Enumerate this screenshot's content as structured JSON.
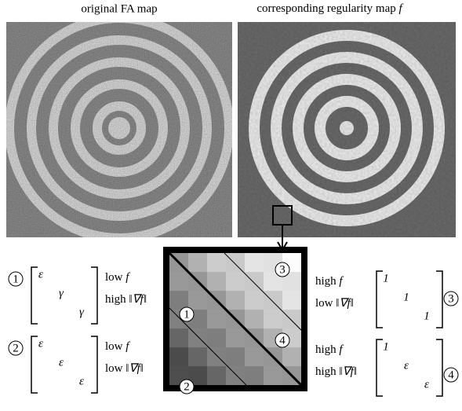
{
  "panels": {
    "left_title": "original FA map",
    "right_title": "corresponding regularity map",
    "right_symbol": "f"
  },
  "cases": [
    {
      "marker": "1",
      "matrix": [
        "ε",
        "γ",
        "γ"
      ],
      "rows": [
        {
          "level": "low",
          "quantity": "f"
        },
        {
          "level": "high",
          "quantity": "‖∇f‖"
        }
      ]
    },
    {
      "marker": "2",
      "matrix": [
        "ε",
        "ε",
        "ε"
      ],
      "rows": [
        {
          "level": "low",
          "quantity": "f"
        },
        {
          "level": "low",
          "quantity": "‖∇f‖"
        }
      ]
    },
    {
      "marker": "3",
      "matrix": [
        "1",
        "1",
        "1"
      ],
      "rows": [
        {
          "level": "high",
          "quantity": "f"
        },
        {
          "level": "low",
          "quantity": "‖∇f‖"
        }
      ]
    },
    {
      "marker": "4",
      "matrix": [
        "1",
        "ε",
        "ε"
      ],
      "rows": [
        {
          "level": "high",
          "quantity": "f"
        },
        {
          "level": "high",
          "quantity": "‖∇f‖"
        }
      ]
    }
  ],
  "zoom_markers": [
    "1",
    "2",
    "3",
    "4"
  ]
}
